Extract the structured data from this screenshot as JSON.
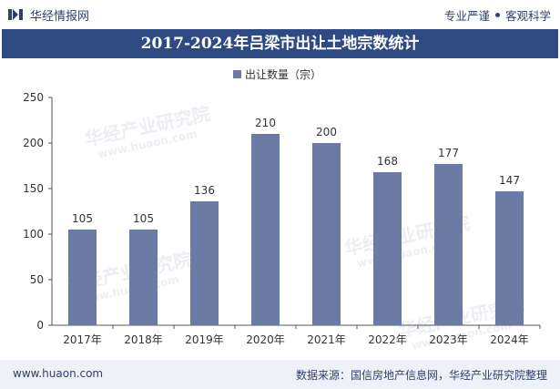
{
  "header": {
    "brand": "华经情报网",
    "tagline_left": "专业严谨",
    "tagline_right": "客观科学"
  },
  "footer": {
    "url": "www.huaon.com",
    "source": "数据来源：国信房地产信息网，华经产业研究院整理"
  },
  "colors": {
    "bar": "#6b7ba3",
    "title_bg": "#2e4a84",
    "text_dark": "#2f3f6e"
  },
  "chart_data": {
    "type": "bar",
    "title": "2017-2024年吕梁市出让土地宗数统计",
    "categories": [
      "2017年",
      "2018年",
      "2019年",
      "2020年",
      "2021年",
      "2022年",
      "2023年",
      "2024年"
    ],
    "series": [
      {
        "name": "出让数量（宗）",
        "values": [
          105,
          105,
          136,
          210,
          200,
          168,
          177,
          147
        ]
      }
    ],
    "xlabel": "",
    "ylabel": "",
    "ylim": [
      0,
      250
    ],
    "yticks": [
      0,
      50,
      100,
      150,
      200,
      250
    ],
    "grid": false,
    "legend_position": "top-center",
    "watermark": "华经产业研究院",
    "watermark_url": "www.huaon.com"
  }
}
